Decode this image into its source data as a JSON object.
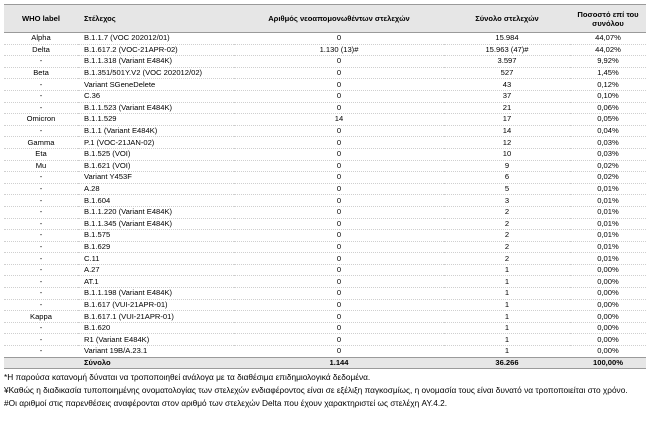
{
  "table": {
    "header": [
      "WHO label",
      "Στέλεχος",
      "Αριθμός νεοαπομονωθέντων στελεχών",
      "Σύνολο στελεχών",
      "Ποσοστό επί του συνόλου"
    ],
    "rows": [
      [
        "Alpha",
        "B.1.1.7 (VOC 202012/01)",
        "0",
        "15.984",
        "44,07%"
      ],
      [
        "Delta",
        "B.1.617.2 (VOC-21APR-02)",
        "1.130 (13)#",
        "15.963 (47)#",
        "44,02%"
      ],
      [
        "-",
        "B.1.1.318 (Variant E484K)",
        "0",
        "3.597",
        "9,92%"
      ],
      [
        "Beta",
        "B.1.351/501Y.V2 (VOC 202012/02)",
        "0",
        "527",
        "1,45%"
      ],
      [
        "-",
        "Variant SGeneDelete",
        "0",
        "43",
        "0,12%"
      ],
      [
        "-",
        "C.36",
        "0",
        "37",
        "0,10%"
      ],
      [
        "-",
        "B.1.1.523 (Variant E484K)",
        "0",
        "21",
        "0,06%"
      ],
      [
        "Omicron",
        "B.1.1.529",
        "14",
        "17",
        "0,05%"
      ],
      [
        "-",
        "B.1.1 (Variant E484K)",
        "0",
        "14",
        "0,04%"
      ],
      [
        "Gamma",
        "P.1 (VOC-21JAN-02)",
        "0",
        "12",
        "0,03%"
      ],
      [
        "Eta",
        "B.1.525 (VOI)",
        "0",
        "10",
        "0,03%"
      ],
      [
        "Mu",
        "B.1.621 (VOI)",
        "0",
        "9",
        "0,02%"
      ],
      [
        "-",
        "Variant Y453F",
        "0",
        "6",
        "0,02%"
      ],
      [
        "-",
        "A.28",
        "0",
        "5",
        "0,01%"
      ],
      [
        "-",
        "B.1.604",
        "0",
        "3",
        "0,01%"
      ],
      [
        "-",
        "B.1.1.220 (Variant E484K)",
        "0",
        "2",
        "0,01%"
      ],
      [
        "-",
        "B.1.1.345 (Variant E484K)",
        "0",
        "2",
        "0,01%"
      ],
      [
        "-",
        "B.1.575",
        "0",
        "2",
        "0,01%"
      ],
      [
        "-",
        "B.1.629",
        "0",
        "2",
        "0,01%"
      ],
      [
        "-",
        "C.11",
        "0",
        "2",
        "0,01%"
      ],
      [
        "-",
        "A.27",
        "0",
        "1",
        "0,00%"
      ],
      [
        "-",
        "AT.1",
        "0",
        "1",
        "0,00%"
      ],
      [
        "-",
        "B.1.1.198 (Variant E484K)",
        "0",
        "1",
        "0,00%"
      ],
      [
        "-",
        "B.1.617 (VUI-21APR-01)",
        "0",
        "1",
        "0,00%"
      ],
      [
        "Kappa",
        "B.1.617.1 (VUI-21APR-01)",
        "0",
        "1",
        "0,00%"
      ],
      [
        "-",
        "B.1.620",
        "0",
        "1",
        "0,00%"
      ],
      [
        "-",
        "R1 (Variant E484K)",
        "0",
        "1",
        "0,00%"
      ],
      [
        "-",
        "Variant 19B/A.23.1",
        "0",
        "1",
        "0,00%"
      ]
    ],
    "total": {
      "label": "Σύνολο",
      "new": "1.144",
      "total": "36.266",
      "percent": "100,00%"
    }
  },
  "footnotes": [
    "*Η παρούσα κατανομή δύναται να τροποποιηθεί ανάλογα με τα διαθέσιμα επιδημιολογικά δεδομένα.",
    "¥Καθώς η διαδικασία τυποποιημένης ονοματολογίας των στελεχών ενδιαφέροντος είναι σε εξέλιξη παγκοσμίως, η ονομασία τους είναι δυνατό να τροποποιείται στο χρόνο.",
    "#Οι αριθμοί στις παρενθέσεις αναφέρονται στον αριθμό των στελεχών Delta που έχουν χαρακτηριστεί ως στελέχη AY.4.2."
  ]
}
